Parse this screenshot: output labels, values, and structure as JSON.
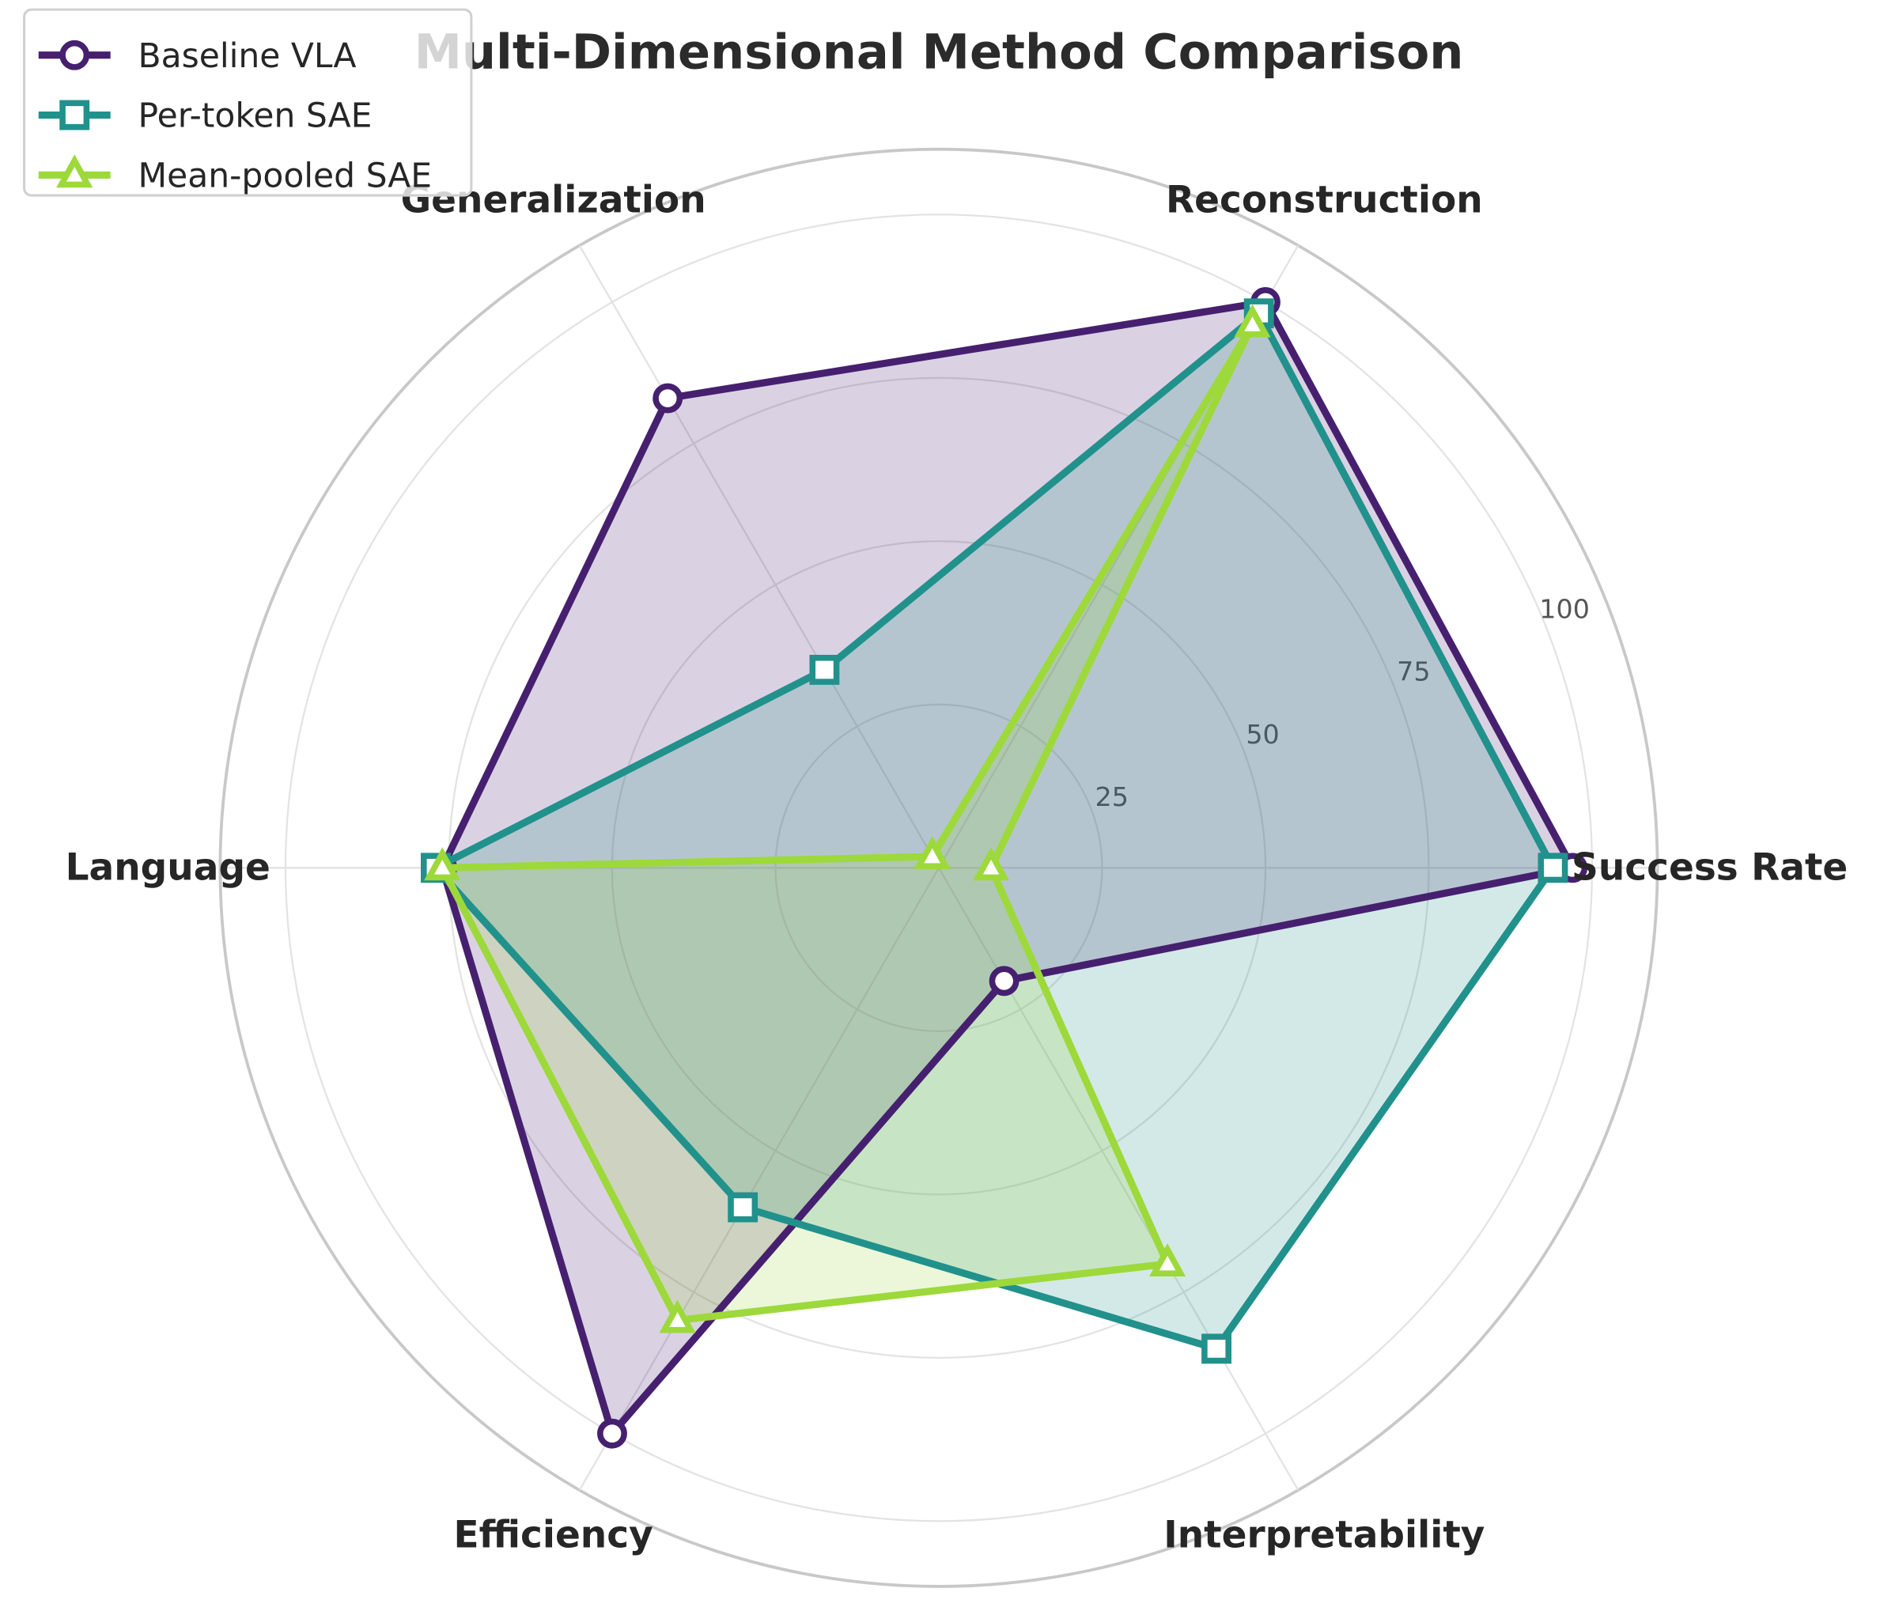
{
  "chart_data": {
    "type": "radar",
    "title": "Multi-Dimensional Method Comparison",
    "categories": [
      "Success Rate",
      "Reconstruction",
      "Generalization",
      "Language",
      "Efficiency",
      "Interpretability"
    ],
    "rlim": [
      0,
      110
    ],
    "rticks": [
      25,
      50,
      75,
      100
    ],
    "grid": true,
    "legend_position": "top-left",
    "series": [
      {
        "name": "Baseline VLA",
        "marker": "circle",
        "color": "#46206f",
        "values": [
          97,
          100,
          83,
          76,
          100,
          20
        ]
      },
      {
        "name": "Per-token SAE",
        "marker": "square",
        "color": "#21918c",
        "values": [
          94,
          98,
          35,
          77,
          60,
          85
        ]
      },
      {
        "name": "Mean-pooled SAE",
        "marker": "triangle",
        "color": "#9dd93a",
        "values": [
          8,
          96,
          2,
          76,
          80,
          70
        ]
      }
    ]
  }
}
